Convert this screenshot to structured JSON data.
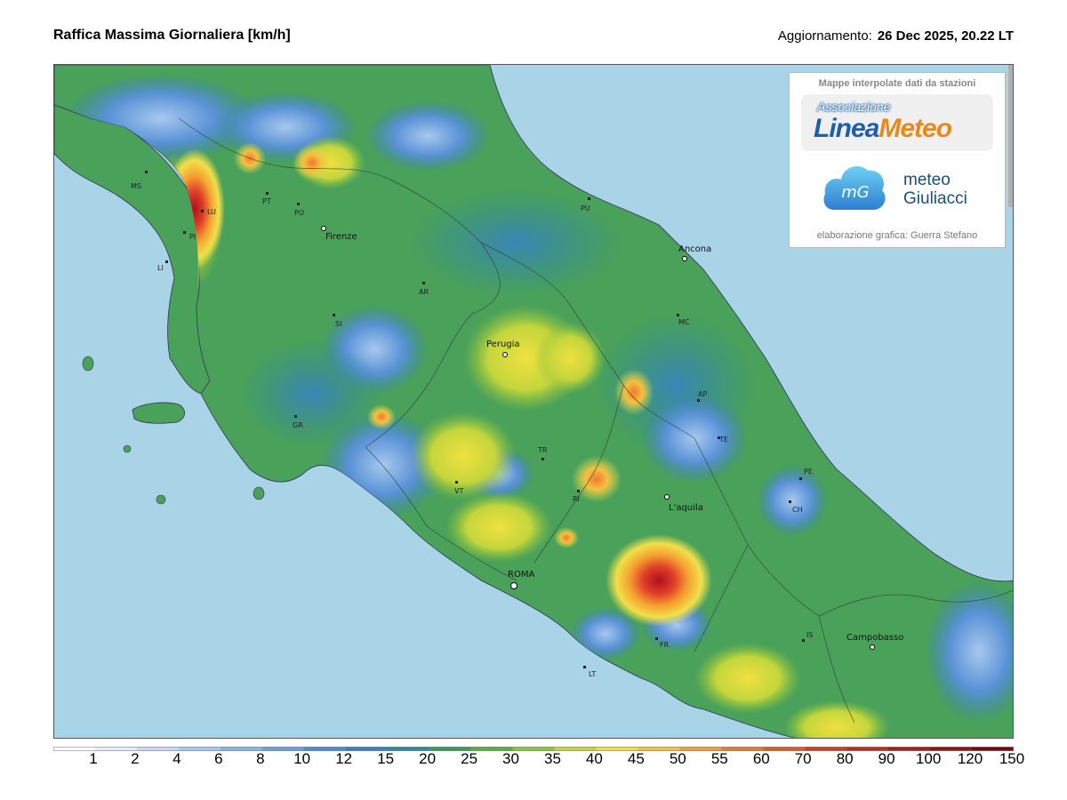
{
  "header": {
    "title": "Raffica Massima Giornaliera [km/h]",
    "updated_label": "Aggiornamento:",
    "updated_value": "26 Dec 2025, 20.22 LT"
  },
  "logo_box": {
    "heading": "Mappe interpolate dati da stazioni",
    "linea_meteo": {
      "assoc": "Associazione",
      "name_part1": "Linea",
      "name_part2": "Meteo"
    },
    "mg": {
      "monogram": "mG",
      "line1": "meteo",
      "line2": "Giuliacci"
    },
    "credit": "elaborazione grafica: Guerra Stefano"
  },
  "map": {
    "cities": [
      {
        "name": "Firenze"
      },
      {
        "name": "Ancona"
      },
      {
        "name": "Perugia"
      },
      {
        "name": "L'aquila"
      },
      {
        "name": "ROMA"
      },
      {
        "name": "Campobasso"
      }
    ],
    "provinces": [
      "MS",
      "LU",
      "PI",
      "LI",
      "PT",
      "PO",
      "AR",
      "SI",
      "GR",
      "PU",
      "MC",
      "AP",
      "TE",
      "PE",
      "CH",
      "TR",
      "RI",
      "VT",
      "FR",
      "LT",
      "IS"
    ]
  },
  "legend": {
    "ticks": [
      "1",
      "2",
      "4",
      "6",
      "8",
      "10",
      "12",
      "15",
      "20",
      "25",
      "30",
      "35",
      "40",
      "45",
      "50",
      "55",
      "60",
      "70",
      "80",
      "90",
      "100",
      "120",
      "150"
    ],
    "colors": [
      "#ffffff",
      "#e8eef8",
      "#c8daf2",
      "#a6c8ee",
      "#86b4e6",
      "#6a9fdc",
      "#4f8bd2",
      "#3a7fc6",
      "#2f8a9a",
      "#3a9a5a",
      "#5aae3c",
      "#8cc43c",
      "#c4d63c",
      "#f0e040",
      "#f6c23a",
      "#f0a030",
      "#e8782a",
      "#e05a28",
      "#d23c24",
      "#c02a22",
      "#a81e20",
      "#8c1418",
      "#700a12"
    ]
  }
}
